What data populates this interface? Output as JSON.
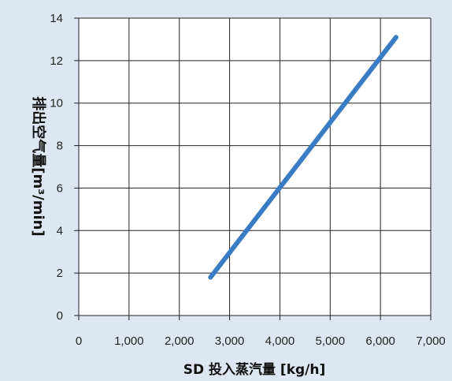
{
  "chart_data": {
    "type": "line",
    "title": "",
    "xlabel": "SD 投入蒸汽量 [kg/h]",
    "ylabel": "排出空气量[m³/min]",
    "xlim": [
      0,
      7000
    ],
    "ylim": [
      0,
      14
    ],
    "x_ticks": [
      0,
      1000,
      2000,
      3000,
      4000,
      5000,
      6000,
      7000
    ],
    "x_tick_labels": [
      "0",
      "1,000",
      "2,000",
      "3,000",
      "4,000",
      "5,000",
      "6,000",
      "7,000"
    ],
    "y_ticks": [
      0,
      2,
      4,
      6,
      8,
      10,
      12,
      14
    ],
    "y_tick_labels": [
      "0",
      "2",
      "4",
      "6",
      "8",
      "10",
      "12",
      "14"
    ],
    "grid": true,
    "series": [
      {
        "x": [
          2620,
          6310
        ],
        "y": [
          1.8,
          13.1
        ],
        "color": "#3a7cc4"
      }
    ]
  },
  "colors": {
    "background": "#dfe6f3",
    "plot_area": "#ffffff",
    "grid": "#222222",
    "line": "#3a7cc4"
  }
}
